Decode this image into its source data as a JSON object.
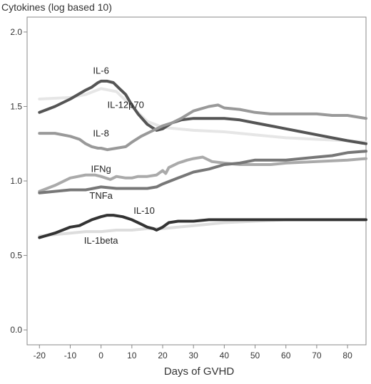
{
  "chart_data": {
    "type": "line",
    "title": "",
    "ylabel": "Cytokines (log based 10)",
    "xlabel": "Days of GVHD",
    "xlim": [
      -24,
      86
    ],
    "ylim": [
      -0.1,
      2.1
    ],
    "xticks": [
      -20,
      -10,
      0,
      10,
      20,
      30,
      40,
      50,
      60,
      70,
      80
    ],
    "yticks": [
      0.0,
      0.5,
      1.0,
      1.5,
      2.0
    ],
    "ytick_labels": [
      "0.0",
      "0.5",
      "1.0",
      "1.5",
      "2.0"
    ],
    "grid": false,
    "series": [
      {
        "name": "IL-12p70",
        "color": "#e6e6e6",
        "label_pos": {
          "x": 8,
          "y": 1.49
        },
        "x": [
          -20,
          -10,
          -5,
          0,
          5,
          10,
          15,
          20,
          30,
          40,
          50,
          60,
          70,
          80,
          86
        ],
        "y": [
          1.55,
          1.56,
          1.58,
          1.62,
          1.6,
          1.5,
          1.4,
          1.36,
          1.34,
          1.33,
          1.31,
          1.29,
          1.28,
          1.27,
          1.26
        ]
      },
      {
        "name": "IL-6",
        "color": "#555555",
        "label_pos": {
          "x": 0,
          "y": 1.72
        },
        "x": [
          -20,
          -15,
          -10,
          -5,
          -3,
          -1,
          0,
          2,
          4,
          6,
          8,
          10,
          12,
          15,
          18,
          20,
          23,
          26,
          30,
          35,
          40,
          45,
          50,
          55,
          60,
          65,
          70,
          75,
          80,
          86
        ],
        "y": [
          1.46,
          1.5,
          1.55,
          1.61,
          1.63,
          1.66,
          1.67,
          1.67,
          1.66,
          1.62,
          1.58,
          1.51,
          1.45,
          1.38,
          1.34,
          1.35,
          1.39,
          1.41,
          1.42,
          1.42,
          1.42,
          1.41,
          1.39,
          1.37,
          1.35,
          1.33,
          1.31,
          1.29,
          1.27,
          1.25
        ]
      },
      {
        "name": "IL-8",
        "color": "#999999",
        "label_pos": {
          "x": 0,
          "y": 1.3
        },
        "x": [
          -20,
          -15,
          -10,
          -7,
          -5,
          -3,
          -1,
          0,
          2,
          5,
          8,
          10,
          13,
          16,
          18,
          20,
          23,
          26,
          30,
          35,
          38,
          40,
          45,
          50,
          55,
          60,
          65,
          70,
          75,
          80,
          86
        ],
        "y": [
          1.32,
          1.32,
          1.3,
          1.28,
          1.25,
          1.23,
          1.22,
          1.22,
          1.21,
          1.22,
          1.23,
          1.26,
          1.3,
          1.33,
          1.35,
          1.37,
          1.39,
          1.42,
          1.47,
          1.5,
          1.51,
          1.49,
          1.48,
          1.46,
          1.45,
          1.45,
          1.45,
          1.45,
          1.44,
          1.44,
          1.42
        ]
      },
      {
        "name": "IFNg",
        "color": "#aaaaaa",
        "label_pos": {
          "x": 0,
          "y": 1.06
        },
        "x": [
          -20,
          -15,
          -10,
          -5,
          -2,
          0,
          3,
          5,
          8,
          10,
          12,
          15,
          18,
          20,
          21,
          22,
          25,
          28,
          30,
          33,
          36,
          40,
          45,
          50,
          55,
          60,
          70,
          80,
          86
        ],
        "y": [
          0.93,
          0.97,
          1.02,
          1.04,
          1.04,
          1.03,
          1.01,
          1.03,
          1.02,
          1.02,
          1.03,
          1.03,
          1.04,
          1.07,
          1.05,
          1.09,
          1.12,
          1.14,
          1.15,
          1.16,
          1.13,
          1.12,
          1.11,
          1.11,
          1.11,
          1.12,
          1.13,
          1.14,
          1.15
        ]
      },
      {
        "name": "TNFa",
        "color": "#777777",
        "label_pos": {
          "x": 0,
          "y": 0.88
        },
        "x": [
          -20,
          -15,
          -10,
          -5,
          0,
          5,
          10,
          15,
          18,
          20,
          25,
          30,
          35,
          40,
          45,
          50,
          55,
          60,
          65,
          70,
          75,
          80,
          86
        ],
        "y": [
          0.92,
          0.93,
          0.94,
          0.94,
          0.96,
          0.95,
          0.95,
          0.95,
          0.96,
          0.98,
          1.02,
          1.06,
          1.08,
          1.11,
          1.12,
          1.14,
          1.14,
          1.14,
          1.15,
          1.16,
          1.17,
          1.19,
          1.2
        ]
      },
      {
        "name": "IL-1beta",
        "color": "#dddddd",
        "label_pos": {
          "x": 0,
          "y": 0.58
        },
        "x": [
          -20,
          -15,
          -10,
          -5,
          0,
          5,
          10,
          15,
          20,
          25,
          30,
          40,
          50,
          60,
          70,
          80,
          86
        ],
        "y": [
          0.63,
          0.64,
          0.65,
          0.66,
          0.66,
          0.67,
          0.67,
          0.68,
          0.68,
          0.69,
          0.7,
          0.72,
          0.73,
          0.74,
          0.74,
          0.74,
          0.74
        ]
      },
      {
        "name": "IL-10",
        "color": "#333333",
        "label_pos": {
          "x": 14,
          "y": 0.78
        },
        "x": [
          -20,
          -15,
          -10,
          -7,
          -5,
          -3,
          0,
          2,
          4,
          7,
          10,
          13,
          15,
          17,
          18,
          20,
          22,
          25,
          30,
          35,
          40,
          50,
          60,
          70,
          80,
          86
        ],
        "y": [
          0.62,
          0.65,
          0.69,
          0.7,
          0.72,
          0.74,
          0.76,
          0.77,
          0.77,
          0.76,
          0.74,
          0.71,
          0.69,
          0.68,
          0.67,
          0.69,
          0.72,
          0.73,
          0.73,
          0.74,
          0.74,
          0.74,
          0.74,
          0.74,
          0.74,
          0.74
        ]
      }
    ]
  }
}
